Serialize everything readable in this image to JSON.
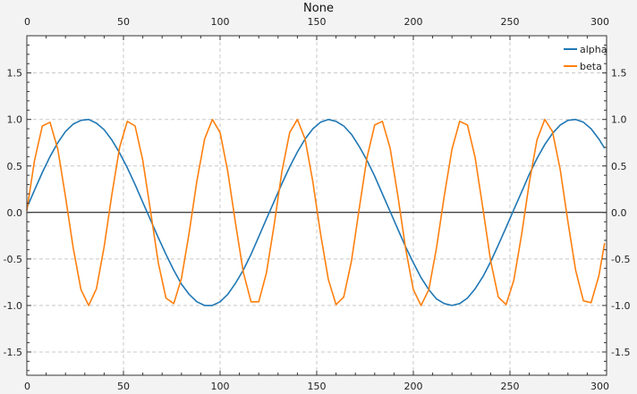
{
  "chart_data": {
    "type": "line",
    "title": "None",
    "xlim": [
      0,
      300
    ],
    "ylim": [
      -1.75,
      1.9
    ],
    "x_ticks": [
      0,
      50,
      100,
      150,
      200,
      250,
      300
    ],
    "y_ticks": [
      -1.5,
      -1.0,
      -0.5,
      0.0,
      0.5,
      1.0,
      1.5
    ],
    "x_tick_labels": [
      "0",
      "50",
      "100",
      "150",
      "200",
      "250",
      "300"
    ],
    "y_tick_labels": [
      "-1.5",
      "-1.0",
      "-0.5",
      "0.0",
      "0.5",
      "1.0",
      "1.5"
    ],
    "grid": true,
    "zero_line": true,
    "legend_position": "top-right",
    "x": [
      0,
      4,
      8,
      12,
      16,
      20,
      24,
      28,
      32,
      36,
      40,
      44,
      48,
      52,
      56,
      60,
      64,
      68,
      72,
      76,
      80,
      84,
      88,
      92,
      96,
      100,
      104,
      108,
      112,
      116,
      120,
      124,
      128,
      132,
      136,
      140,
      144,
      148,
      152,
      156,
      160,
      164,
      168,
      172,
      176,
      180,
      184,
      188,
      192,
      196,
      200,
      204,
      208,
      212,
      216,
      220,
      224,
      228,
      232,
      236,
      240,
      244,
      248,
      252,
      256,
      260,
      264,
      268,
      272,
      276,
      280,
      284,
      288,
      292,
      296,
      299
    ],
    "series": [
      {
        "name": "alpha",
        "color": "#1f77b4",
        "values": [
          0.05,
          0.24,
          0.43,
          0.6,
          0.75,
          0.87,
          0.95,
          0.99,
          1.0,
          0.96,
          0.89,
          0.78,
          0.64,
          0.48,
          0.3,
          0.11,
          -0.08,
          -0.27,
          -0.45,
          -0.62,
          -0.77,
          -0.88,
          -0.96,
          -1.0,
          -1.0,
          -0.96,
          -0.88,
          -0.76,
          -0.62,
          -0.45,
          -0.26,
          -0.07,
          0.12,
          0.31,
          0.49,
          0.65,
          0.79,
          0.9,
          0.97,
          1.0,
          0.98,
          0.93,
          0.84,
          0.71,
          0.56,
          0.39,
          0.2,
          0.01,
          -0.18,
          -0.37,
          -0.54,
          -0.7,
          -0.83,
          -0.93,
          -0.98,
          -1.0,
          -0.98,
          -0.92,
          -0.82,
          -0.69,
          -0.53,
          -0.35,
          -0.16,
          0.03,
          0.22,
          0.41,
          0.58,
          0.73,
          0.85,
          0.94,
          0.99,
          1.0,
          0.97,
          0.9,
          0.79,
          0.69
        ]
      },
      {
        "name": "beta",
        "color": "#ff7f0e",
        "values": [
          0.02,
          0.56,
          0.93,
          0.97,
          0.68,
          0.17,
          -0.38,
          -0.83,
          -1.0,
          -0.82,
          -0.37,
          0.19,
          0.7,
          0.98,
          0.93,
          0.56,
          0.02,
          -0.54,
          -0.92,
          -0.98,
          -0.71,
          -0.22,
          0.34,
          0.79,
          1.0,
          0.86,
          0.44,
          -0.12,
          -0.64,
          -0.96,
          -0.96,
          -0.65,
          -0.13,
          0.44,
          0.86,
          1.0,
          0.79,
          0.33,
          -0.23,
          -0.72,
          -0.99,
          -0.91,
          -0.52,
          0.04,
          0.59,
          0.94,
          0.98,
          0.69,
          0.18,
          -0.39,
          -0.83,
          -1.0,
          -0.83,
          -0.38,
          0.18,
          0.68,
          0.98,
          0.94,
          0.59,
          0.04,
          -0.52,
          -0.91,
          -0.99,
          -0.73,
          -0.24,
          0.32,
          0.78,
          1.0,
          0.87,
          0.46,
          -0.1,
          -0.62,
          -0.95,
          -0.97,
          -0.68,
          -0.33
        ]
      }
    ]
  }
}
